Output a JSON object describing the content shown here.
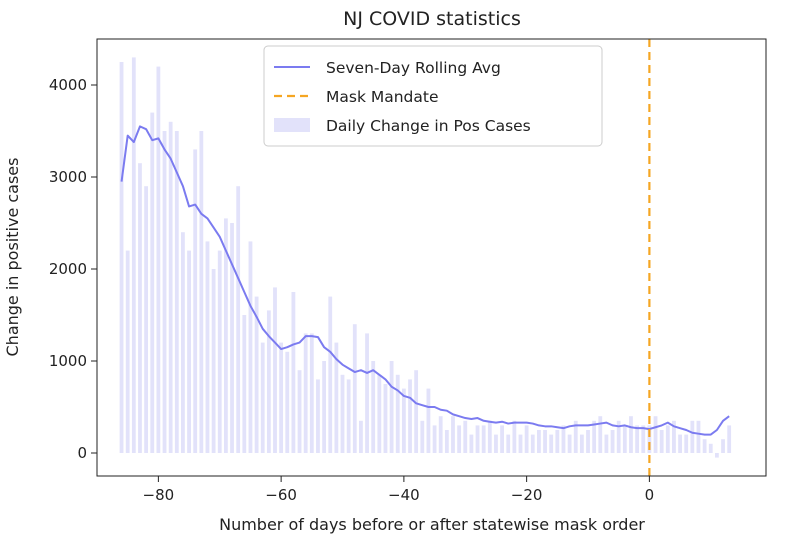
{
  "chart_data": {
    "type": "bar",
    "title": "NJ COVID statistics",
    "xlabel": "Number of days before or after statewise mask order",
    "ylabel": "Change in positive cases",
    "xlim": [
      -90,
      19
    ],
    "ylim": [
      -250,
      4500
    ],
    "xticks": [
      -80,
      -60,
      -40,
      -20,
      0
    ],
    "xtick_labels": [
      "−80",
      "−60",
      "−40",
      "−20",
      "0"
    ],
    "yticks": [
      0,
      1000,
      2000,
      3000,
      4000
    ],
    "ytick_labels": [
      "0",
      "1000",
      "2000",
      "3000",
      "4000"
    ],
    "grid": false,
    "legend_position": "top-center",
    "legend": [
      {
        "label": "Seven-Day Rolling Avg",
        "kind": "line",
        "color": "#7b7bf0"
      },
      {
        "label": "Mask Mandate",
        "kind": "dashed-line",
        "color": "#f5a623"
      },
      {
        "label": "Daily Change in Pos Cases",
        "kind": "bar",
        "color": "#e2e2fa"
      }
    ],
    "vline": {
      "x": 0,
      "color": "#f5a623"
    },
    "series": [
      {
        "name": "Daily Change in Pos Cases",
        "kind": "bar",
        "color": "#e2e2fa",
        "x": [
          -86,
          -85,
          -84,
          -83,
          -82,
          -81,
          -80,
          -79,
          -78,
          -77,
          -76,
          -75,
          -74,
          -73,
          -72,
          -71,
          -70,
          -69,
          -68,
          -67,
          -66,
          -65,
          -64,
          -63,
          -62,
          -61,
          -60,
          -59,
          -58,
          -57,
          -56,
          -55,
          -54,
          -53,
          -52,
          -51,
          -50,
          -49,
          -48,
          -47,
          -46,
          -45,
          -44,
          -43,
          -42,
          -41,
          -40,
          -39,
          -38,
          -37,
          -36,
          -35,
          -34,
          -33,
          -32,
          -31,
          -30,
          -29,
          -28,
          -27,
          -26,
          -25,
          -24,
          -23,
          -22,
          -21,
          -20,
          -19,
          -18,
          -17,
          -16,
          -15,
          -14,
          -13,
          -12,
          -11,
          -10,
          -9,
          -8,
          -7,
          -6,
          -5,
          -4,
          -3,
          -2,
          -1,
          0,
          1,
          2,
          3,
          4,
          5,
          6,
          7,
          8,
          9,
          10,
          11,
          12,
          13
        ],
        "values": [
          4250,
          2200,
          4300,
          3150,
          2900,
          3700,
          4200,
          3500,
          3600,
          3500,
          2400,
          2200,
          3300,
          3500,
          2300,
          2000,
          2200,
          2550,
          2500,
          2900,
          1500,
          2300,
          1700,
          1200,
          1550,
          1800,
          1200,
          1100,
          1750,
          900,
          1300,
          1300,
          800,
          1000,
          1700,
          1200,
          850,
          800,
          1400,
          350,
          1300,
          1000,
          850,
          750,
          1000,
          850,
          700,
          800,
          900,
          350,
          700,
          300,
          400,
          250,
          400,
          300,
          350,
          200,
          300,
          300,
          350,
          200,
          300,
          200,
          350,
          200,
          300,
          200,
          250,
          250,
          200,
          250,
          300,
          200,
          350,
          200,
          250,
          350,
          400,
          200,
          250,
          350,
          300,
          400,
          300,
          300,
          300,
          400,
          250,
          300,
          350,
          200,
          200,
          350,
          350,
          150,
          100,
          -50,
          150,
          300
        ]
      },
      {
        "name": "Seven-Day Rolling Avg",
        "kind": "line",
        "color": "#7b7bf0",
        "x": [
          -86,
          -85,
          -84,
          -83,
          -82,
          -81,
          -80,
          -79,
          -78,
          -77,
          -76,
          -75,
          -74,
          -73,
          -72,
          -71,
          -70,
          -69,
          -68,
          -67,
          -66,
          -65,
          -64,
          -63,
          -62,
          -61,
          -60,
          -59,
          -58,
          -57,
          -56,
          -55,
          -54,
          -53,
          -52,
          -51,
          -50,
          -49,
          -48,
          -47,
          -46,
          -45,
          -44,
          -43,
          -42,
          -41,
          -40,
          -39,
          -38,
          -37,
          -36,
          -35,
          -34,
          -33,
          -32,
          -31,
          -30,
          -29,
          -28,
          -27,
          -26,
          -25,
          -24,
          -23,
          -22,
          -21,
          -20,
          -19,
          -18,
          -17,
          -16,
          -15,
          -14,
          -13,
          -12,
          -11,
          -10,
          -9,
          -8,
          -7,
          -6,
          -5,
          -4,
          -3,
          -2,
          -1,
          0,
          1,
          2,
          3,
          4,
          5,
          6,
          7,
          8,
          9,
          10,
          11,
          12,
          13
        ],
        "values": [
          2950,
          3450,
          3380,
          3550,
          3520,
          3400,
          3420,
          3300,
          3200,
          3050,
          2900,
          2680,
          2700,
          2600,
          2550,
          2450,
          2350,
          2200,
          2050,
          1900,
          1750,
          1600,
          1480,
          1350,
          1270,
          1200,
          1130,
          1150,
          1180,
          1200,
          1270,
          1270,
          1260,
          1150,
          1100,
          1020,
          960,
          920,
          880,
          900,
          870,
          900,
          850,
          800,
          720,
          680,
          620,
          600,
          540,
          520,
          500,
          500,
          470,
          460,
          420,
          400,
          380,
          370,
          380,
          350,
          340,
          330,
          340,
          320,
          330,
          330,
          330,
          320,
          300,
          290,
          290,
          280,
          270,
          290,
          300,
          300,
          300,
          310,
          320,
          330,
          300,
          290,
          300,
          280,
          270,
          270,
          260,
          280,
          300,
          330,
          290,
          270,
          250,
          220,
          210,
          200,
          200,
          250,
          350,
          400
        ]
      }
    ]
  }
}
